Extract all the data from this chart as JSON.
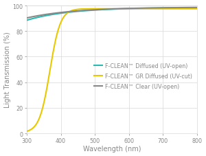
{
  "title": "",
  "xlabel": "Wavelength (nm)",
  "ylabel": "Light Transmission (%)",
  "xlim": [
    300,
    800
  ],
  "ylim": [
    0,
    100
  ],
  "xticks": [
    300,
    400,
    500,
    600,
    700,
    800
  ],
  "yticks": [
    0,
    20,
    40,
    60,
    80,
    100
  ],
  "legend": [
    {
      "label": "F-CLEAN™ Diffused (UV-open)",
      "color": "#2ab8b0",
      "lw": 1.5
    },
    {
      "label": "F-CLEAN™ GR Diffused (UV-cut)",
      "color": "#e8c800",
      "lw": 1.5
    },
    {
      "label": "F-CLEAN™ Clear (UV-open)",
      "color": "#888888",
      "lw": 1.5
    }
  ],
  "background_color": "#ffffff",
  "grid_color": "#d8d8d8",
  "tick_label_color": "#888888",
  "axis_label_color": "#888888",
  "font_size": 5.8,
  "label_font_size": 7.0,
  "figsize": [
    3.0,
    2.28
  ],
  "dpi": 100
}
